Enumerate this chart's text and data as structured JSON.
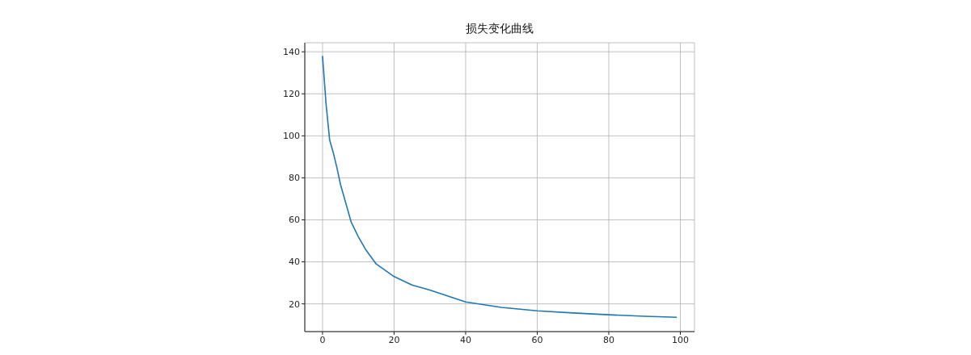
{
  "chart_data": {
    "type": "line",
    "title": "损失变化曲线",
    "x": [
      0,
      1,
      2,
      3,
      4,
      5,
      8,
      10,
      12,
      15,
      20,
      25,
      30,
      40,
      50,
      60,
      70,
      80,
      90,
      99
    ],
    "series": [
      {
        "color": "#1f77b4",
        "values": [
          138,
          115,
          98,
          92,
          85,
          77,
          59,
          52,
          46,
          39,
          33,
          29,
          26.6,
          20.9,
          18.3,
          16.7,
          15.7,
          14.8,
          14.1,
          13.6
        ]
      }
    ],
    "xlim": [
      -4.95,
      103.95
    ],
    "xticks": [
      0,
      20,
      40,
      60,
      80,
      100
    ],
    "ylim": [
      6.8,
      144.3
    ],
    "yticks": [
      20,
      40,
      60,
      80,
      100,
      120,
      140
    ],
    "grid": true,
    "marker": "none",
    "line_style": "solid"
  }
}
